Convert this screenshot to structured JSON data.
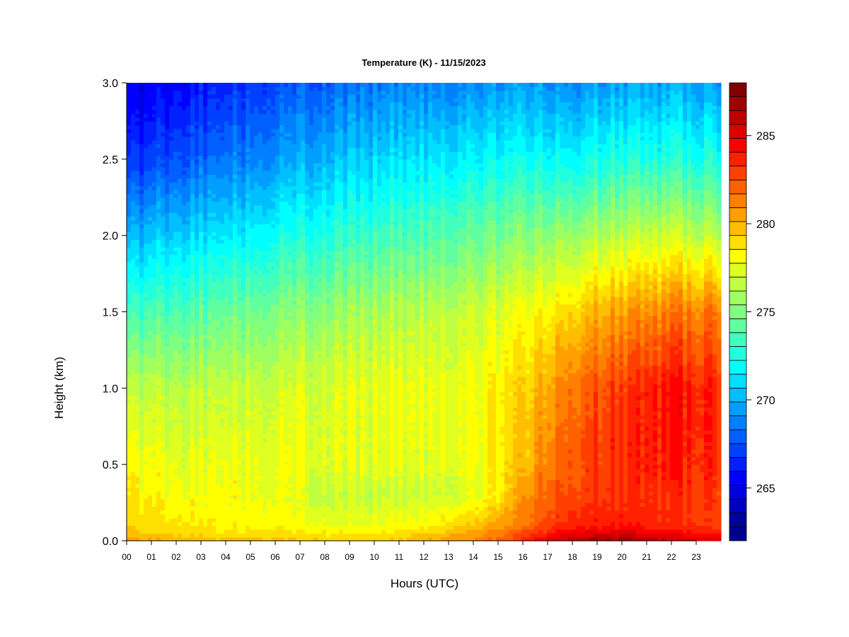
{
  "chart_data": {
    "type": "heatmap",
    "title": "Temperature (K) - 11/15/2023",
    "xlabel": "Hours (UTC)",
    "ylabel": "Height (km)",
    "x_ticks": [
      "00",
      "01",
      "02",
      "03",
      "04",
      "05",
      "06",
      "07",
      "08",
      "09",
      "10",
      "11",
      "12",
      "13",
      "14",
      "15",
      "16",
      "17",
      "18",
      "19",
      "20",
      "21",
      "22",
      "23"
    ],
    "xlim": [
      0,
      24
    ],
    "y_ticks": [
      "0.0",
      "0.5",
      "1.0",
      "1.5",
      "2.0",
      "2.5",
      "3.0"
    ],
    "ylim": [
      0,
      3.0
    ],
    "colorbar": {
      "range": [
        262,
        288
      ],
      "step": 1,
      "ticks": [
        "265",
        "270",
        "275",
        "280",
        "285"
      ],
      "colors": [
        "#00008f",
        "#00009f",
        "#0000bf",
        "#0000df",
        "#0000ff",
        "#0020ff",
        "#0040ff",
        "#0060ff",
        "#0080ff",
        "#009fff",
        "#00bfff",
        "#00dfff",
        "#00ffff",
        "#20ffdf",
        "#40ffbf",
        "#60ff9f",
        "#80ff80",
        "#9fff60",
        "#bfff40",
        "#dfff20",
        "#ffff00",
        "#ffdf00",
        "#ffbf00",
        "#ff9f00",
        "#ff8000",
        "#ff6000",
        "#ff4000",
        "#ff2000",
        "#ff0000",
        "#df0000",
        "#bf0000",
        "#9f0000",
        "#800000"
      ]
    },
    "temperature_field_K": {
      "hours": [
        0,
        2,
        4,
        6,
        8,
        10,
        12,
        14,
        15,
        16,
        17,
        18,
        20,
        22,
        24
      ],
      "heights_km": [
        0.0,
        0.05,
        0.1,
        0.3,
        0.5,
        1.0,
        1.5,
        2.0,
        2.5,
        3.0
      ],
      "values": [
        [
          280.5,
          280.0,
          279.5,
          279.6,
          279.3,
          279.3,
          280.0,
          281.0,
          282.0,
          283.5,
          285.0,
          286.5,
          287.0,
          286.0,
          285.5
        ],
        [
          279.8,
          279.2,
          278.8,
          278.9,
          278.6,
          278.6,
          279.2,
          280.5,
          281.5,
          282.5,
          283.8,
          285.0,
          285.5,
          284.5,
          284.0
        ],
        [
          279.2,
          278.7,
          278.3,
          278.3,
          277.8,
          277.8,
          278.3,
          279.5,
          280.5,
          281.5,
          282.8,
          283.8,
          284.0,
          283.5,
          283.0
        ],
        [
          278.5,
          278.0,
          278.0,
          277.8,
          276.8,
          276.7,
          276.8,
          277.5,
          278.5,
          280.5,
          282.2,
          283.0,
          283.3,
          283.5,
          283.0
        ],
        [
          278.0,
          277.6,
          277.8,
          277.8,
          277.5,
          277.4,
          277.5,
          278.0,
          278.6,
          279.5,
          281.5,
          282.8,
          283.5,
          284.0,
          283.5
        ],
        [
          276.5,
          276.5,
          276.8,
          277.0,
          277.3,
          277.5,
          277.7,
          278.0,
          278.5,
          279.0,
          280.5,
          282.0,
          283.0,
          284.3,
          283.5
        ],
        [
          273.3,
          273.8,
          274.5,
          275.0,
          275.5,
          276.0,
          276.5,
          277.0,
          277.3,
          277.8,
          278.5,
          279.5,
          280.5,
          281.5,
          281.5
        ],
        [
          269.8,
          270.8,
          271.5,
          272.2,
          272.8,
          273.3,
          273.8,
          274.5,
          274.8,
          275.0,
          275.5,
          276.0,
          276.5,
          277.0,
          276.5
        ],
        [
          266.5,
          267.5,
          268.5,
          269.3,
          270.2,
          270.8,
          271.3,
          271.8,
          272.0,
          272.0,
          272.0,
          272.2,
          272.5,
          272.8,
          272.5
        ],
        [
          264.5,
          265.5,
          266.5,
          267.3,
          268.0,
          268.5,
          268.8,
          269.0,
          269.2,
          269.3,
          269.3,
          269.3,
          269.5,
          269.8,
          269.5
        ]
      ]
    }
  }
}
